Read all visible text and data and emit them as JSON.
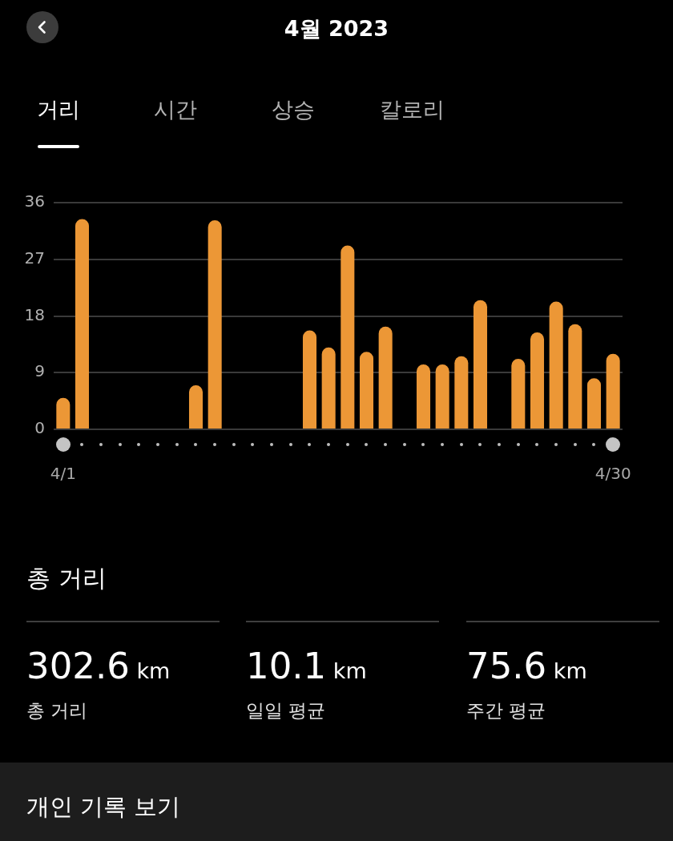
{
  "chart_data": {
    "type": "bar",
    "title": "4월 2023",
    "categories": [
      "4/1",
      null,
      null,
      null,
      null,
      null,
      null,
      null,
      null,
      null,
      null,
      null,
      null,
      null,
      null,
      null,
      null,
      null,
      null,
      null,
      null,
      null,
      null,
      null,
      null,
      null,
      null,
      null,
      null,
      "4/30"
    ],
    "values": [
      5.0,
      33.4,
      null,
      null,
      null,
      null,
      null,
      7.0,
      33.2,
      null,
      null,
      null,
      null,
      15.7,
      13.0,
      29.2,
      12.3,
      16.3,
      null,
      10.3,
      10.3,
      11.6,
      20.5,
      null,
      11.2,
      15.4,
      20.3,
      16.7,
      8.1,
      12.0
    ],
    "color": "#ec9736",
    "ylim": [
      0,
      36
    ],
    "yticks": [
      0,
      9,
      18,
      27,
      36
    ],
    "grid": "y",
    "annotations": [
      "거리",
      "시간",
      "상승",
      "칼로리",
      "총 거리",
      "302.6 km",
      "총 거리",
      "10.1 km",
      "일일 평균",
      "75.6 km",
      "주간 평균",
      "개인 기록 보기"
    ]
  }
}
